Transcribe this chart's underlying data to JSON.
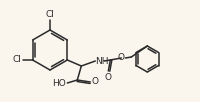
{
  "bg_color": "#faf6ee",
  "bond_color": "#2a2a2a",
  "text_color": "#2a2a2a",
  "lw": 1.1,
  "fs": 6.5,
  "figsize": [
    2.0,
    1.02
  ],
  "dpi": 100,
  "xlim": [
    0,
    200
  ],
  "ylim": [
    0,
    102
  ]
}
